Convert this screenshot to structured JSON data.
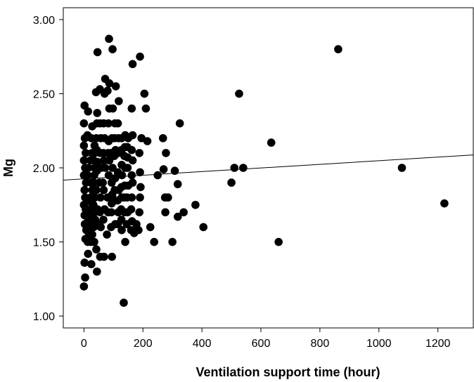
{
  "chart_data": {
    "type": "scatter",
    "title": "",
    "xlabel": "Ventilation support time (hour)",
    "ylabel": "Mg",
    "xlim": [
      -70,
      1320
    ],
    "ylim": [
      0.92,
      3.08
    ],
    "x_ticks": [
      0,
      200,
      400,
      600,
      800,
      1000,
      1200
    ],
    "x_tick_labels": [
      "0",
      "200",
      "400",
      "600",
      "800",
      "1000",
      "1200"
    ],
    "y_ticks": [
      1.0,
      1.5,
      2.0,
      2.5,
      3.0
    ],
    "y_tick_labels": [
      "1.00",
      "1.50",
      "2.00",
      "2.50",
      "3.00"
    ],
    "grid": false,
    "legend": "none",
    "colors": {
      "points": "#000000",
      "fit_line": "#000000",
      "frame": "#000000",
      "background": "#ffffff"
    },
    "fit_line": {
      "x": [
        -70,
        1320
      ],
      "y": [
        1.917,
        2.087
      ]
    },
    "points": [
      [
        0,
        1.2
      ],
      [
        4,
        1.26
      ],
      [
        2,
        1.36
      ],
      [
        5,
        1.52
      ],
      [
        8,
        1.58
      ],
      [
        3,
        1.62
      ],
      [
        2,
        1.68
      ],
      [
        6,
        1.72
      ],
      [
        0,
        1.75
      ],
      [
        4,
        1.8
      ],
      [
        2,
        1.85
      ],
      [
        7,
        1.9
      ],
      [
        0,
        1.95
      ],
      [
        4,
        2.0
      ],
      [
        0,
        2.05
      ],
      [
        6,
        2.1
      ],
      [
        0,
        2.15
      ],
      [
        3,
        2.2
      ],
      [
        0,
        2.3
      ],
      [
        2,
        2.42
      ],
      [
        14,
        2.38
      ],
      [
        12,
        2.22
      ],
      [
        15,
        2.0
      ],
      [
        12,
        1.95
      ],
      [
        16,
        1.78
      ],
      [
        15,
        1.65
      ],
      [
        13,
        1.5
      ],
      [
        14,
        1.42
      ],
      [
        18,
        1.55
      ],
      [
        25,
        1.35
      ],
      [
        24,
        1.5
      ],
      [
        28,
        1.55
      ],
      [
        22,
        1.6
      ],
      [
        26,
        1.65
      ],
      [
        23,
        1.7
      ],
      [
        28,
        1.75
      ],
      [
        22,
        1.8
      ],
      [
        28,
        1.85
      ],
      [
        24,
        1.9
      ],
      [
        22,
        2.05
      ],
      [
        27,
        2.1
      ],
      [
        25,
        2.2
      ],
      [
        28,
        2.28
      ],
      [
        35,
        1.5
      ],
      [
        33,
        1.6
      ],
      [
        38,
        1.65
      ],
      [
        36,
        1.7
      ],
      [
        32,
        1.75
      ],
      [
        37,
        1.8
      ],
      [
        33,
        1.9
      ],
      [
        35,
        1.95
      ],
      [
        36,
        2.0
      ],
      [
        33,
        2.05
      ],
      [
        37,
        2.1
      ],
      [
        36,
        2.15
      ],
      [
        44,
        1.3
      ],
      [
        42,
        1.45
      ],
      [
        45,
        1.62
      ],
      [
        46,
        1.72
      ],
      [
        42,
        1.85
      ],
      [
        44,
        1.98
      ],
      [
        46,
        2.04
      ],
      [
        44,
        2.12
      ],
      [
        42,
        2.2
      ],
      [
        44,
        2.3
      ],
      [
        45,
        2.37
      ],
      [
        41,
        2.51
      ],
      [
        46,
        2.78
      ],
      [
        55,
        1.4
      ],
      [
        57,
        1.6
      ],
      [
        54,
        1.7
      ],
      [
        56,
        1.8
      ],
      [
        52,
        1.9
      ],
      [
        58,
        2.0
      ],
      [
        55,
        2.1
      ],
      [
        57,
        2.2
      ],
      [
        55,
        2.3
      ],
      [
        54,
        2.53
      ],
      [
        68,
        1.4
      ],
      [
        66,
        1.65
      ],
      [
        70,
        1.72
      ],
      [
        67,
        1.85
      ],
      [
        64,
        1.9
      ],
      [
        72,
        2.0
      ],
      [
        68,
        2.05
      ],
      [
        66,
        2.1
      ],
      [
        70,
        2.2
      ],
      [
        67,
        2.3
      ],
      [
        70,
        2.5
      ],
      [
        72,
        2.6
      ],
      [
        78,
        1.55
      ],
      [
        82,
        1.7
      ],
      [
        80,
        1.8
      ],
      [
        84,
        1.95
      ],
      [
        86,
        2.05
      ],
      [
        82,
        2.1
      ],
      [
        84,
        2.18
      ],
      [
        83,
        2.3
      ],
      [
        86,
        2.4
      ],
      [
        86,
        2.57
      ],
      [
        80,
        2.52
      ],
      [
        85,
        2.87
      ],
      [
        95,
        1.4
      ],
      [
        92,
        1.6
      ],
      [
        93,
        1.7
      ],
      [
        94,
        1.76
      ],
      [
        96,
        1.82
      ],
      [
        94,
        1.9
      ],
      [
        97,
        2.0
      ],
      [
        92,
        2.1
      ],
      [
        95,
        2.2
      ],
      [
        98,
        2.4
      ],
      [
        97,
        2.8
      ],
      [
        106,
        1.62
      ],
      [
        105,
        1.78
      ],
      [
        104,
        1.85
      ],
      [
        106,
        1.93
      ],
      [
        103,
        2.08
      ],
      [
        107,
        2.12
      ],
      [
        104,
        2.2
      ],
      [
        105,
        2.3
      ],
      [
        108,
        2.55
      ],
      [
        115,
        1.62
      ],
      [
        116,
        1.7
      ],
      [
        114,
        1.78
      ],
      [
        118,
        1.85
      ],
      [
        115,
        1.97
      ],
      [
        116,
        2.1
      ],
      [
        117,
        2.2
      ],
      [
        115,
        2.3
      ],
      [
        118,
        2.45
      ],
      [
        128,
        1.58
      ],
      [
        127,
        1.65
      ],
      [
        126,
        1.72
      ],
      [
        128,
        1.8
      ],
      [
        127,
        1.87
      ],
      [
        129,
        1.95
      ],
      [
        128,
        2.02
      ],
      [
        127,
        2.12
      ],
      [
        128,
        2.2
      ],
      [
        135,
        1.09
      ],
      [
        140,
        1.5
      ],
      [
        138,
        1.7
      ],
      [
        136,
        1.8
      ],
      [
        138,
        1.88
      ],
      [
        140,
        2.0
      ],
      [
        137,
        2.08
      ],
      [
        139,
        2.14
      ],
      [
        140,
        2.22
      ],
      [
        145,
        1.62
      ],
      [
        148,
        1.7
      ],
      [
        146,
        1.8
      ],
      [
        150,
        1.88
      ],
      [
        148,
        2.0
      ],
      [
        148,
        2.07
      ],
      [
        147,
        2.14
      ],
      [
        150,
        2.2
      ],
      [
        160,
        1.58
      ],
      [
        163,
        1.64
      ],
      [
        160,
        1.72
      ],
      [
        162,
        1.8
      ],
      [
        165,
        1.9
      ],
      [
        162,
        1.95
      ],
      [
        165,
        2.05
      ],
      [
        162,
        2.12
      ],
      [
        165,
        2.22
      ],
      [
        162,
        2.4
      ],
      [
        165,
        2.7
      ],
      [
        170,
        1.56
      ],
      [
        176,
        1.58
      ],
      [
        178,
        1.62
      ],
      [
        185,
        1.58
      ],
      [
        188,
        1.7
      ],
      [
        190,
        1.8
      ],
      [
        192,
        1.87
      ],
      [
        190,
        1.97
      ],
      [
        188,
        2.1
      ],
      [
        195,
        2.2
      ],
      [
        190,
        2.75
      ],
      [
        205,
        2.5
      ],
      [
        210,
        2.4
      ],
      [
        215,
        2.18
      ],
      [
        225,
        1.6
      ],
      [
        238,
        1.5
      ],
      [
        250,
        1.95
      ],
      [
        268,
        2.2
      ],
      [
        270,
        1.99
      ],
      [
        275,
        1.8
      ],
      [
        278,
        2.1
      ],
      [
        276,
        1.7
      ],
      [
        285,
        1.8
      ],
      [
        300,
        1.5
      ],
      [
        308,
        1.98
      ],
      [
        318,
        1.89
      ],
      [
        318,
        1.67
      ],
      [
        325,
        2.3
      ],
      [
        338,
        1.7
      ],
      [
        378,
        1.75
      ],
      [
        405,
        1.6
      ],
      [
        500,
        1.9
      ],
      [
        510,
        2.0
      ],
      [
        526,
        2.5
      ],
      [
        540,
        2.0
      ],
      [
        635,
        2.17
      ],
      [
        660,
        1.5
      ],
      [
        862,
        2.8
      ],
      [
        1078,
        2.0
      ],
      [
        1222,
        1.76
      ]
    ]
  }
}
